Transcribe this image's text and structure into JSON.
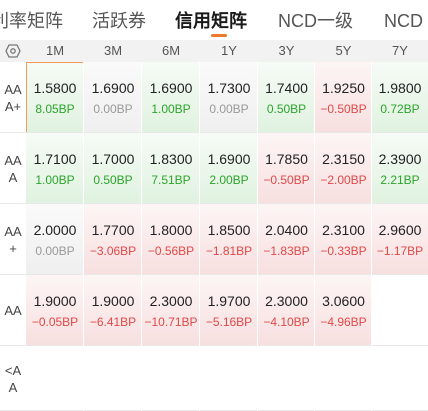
{
  "tabs": [
    "利率矩阵",
    "活跃券",
    "信用矩阵",
    "NCD一级",
    "NCD"
  ],
  "active_tab_index": 2,
  "columns": [
    "1M",
    "3M",
    "6M",
    "1Y",
    "3Y",
    "5Y",
    "7Y"
  ],
  "rows": [
    {
      "label": [
        "AA",
        "A+"
      ],
      "cells": [
        {
          "value": "1.5800",
          "delta": "8.05BP",
          "trend": "pos",
          "selected": true
        },
        {
          "value": "1.6900",
          "delta": "0.00BP",
          "trend": "zero"
        },
        {
          "value": "1.6900",
          "delta": "1.00BP",
          "trend": "pos"
        },
        {
          "value": "1.7300",
          "delta": "0.00BP",
          "trend": "zero"
        },
        {
          "value": "1.7400",
          "delta": "0.50BP",
          "trend": "pos"
        },
        {
          "value": "1.9250",
          "delta": "−0.50BP",
          "trend": "neg"
        },
        {
          "value": "1.9800",
          "delta": "0.72BP",
          "trend": "pos"
        }
      ]
    },
    {
      "label": [
        "AA",
        "A"
      ],
      "cells": [
        {
          "value": "1.7100",
          "delta": "1.00BP",
          "trend": "pos"
        },
        {
          "value": "1.7000",
          "delta": "0.50BP",
          "trend": "pos"
        },
        {
          "value": "1.8300",
          "delta": "7.51BP",
          "trend": "pos"
        },
        {
          "value": "1.6900",
          "delta": "2.00BP",
          "trend": "pos"
        },
        {
          "value": "1.7850",
          "delta": "−0.50BP",
          "trend": "neg"
        },
        {
          "value": "2.3150",
          "delta": "−2.00BP",
          "trend": "neg"
        },
        {
          "value": "2.3900",
          "delta": "2.21BP",
          "trend": "pos"
        }
      ]
    },
    {
      "label": [
        "AA",
        "+"
      ],
      "cells": [
        {
          "value": "2.0000",
          "delta": "0.00BP",
          "trend": "zero"
        },
        {
          "value": "1.7700",
          "delta": "−3.06BP",
          "trend": "neg"
        },
        {
          "value": "1.8000",
          "delta": "−0.56BP",
          "trend": "neg"
        },
        {
          "value": "1.8500",
          "delta": "−1.81BP",
          "trend": "neg"
        },
        {
          "value": "2.0400",
          "delta": "−1.83BP",
          "trend": "neg"
        },
        {
          "value": "2.3100",
          "delta": "−0.33BP",
          "trend": "neg"
        },
        {
          "value": "2.9600",
          "delta": "−1.17BP",
          "trend": "neg"
        }
      ]
    },
    {
      "label": [
        "AA"
      ],
      "cells": [
        {
          "value": "1.9000",
          "delta": "−0.05BP",
          "trend": "neg"
        },
        {
          "value": "1.9000",
          "delta": "−6.41BP",
          "trend": "neg"
        },
        {
          "value": "2.3000",
          "delta": "−10.71BP",
          "trend": "neg"
        },
        {
          "value": "1.9700",
          "delta": "−5.16BP",
          "trend": "neg"
        },
        {
          "value": "2.3000",
          "delta": "−4.10BP",
          "trend": "neg"
        },
        {
          "value": "3.0600",
          "delta": "−4.96BP",
          "trend": "neg"
        },
        {
          "value": "",
          "delta": "",
          "trend": "empty"
        }
      ]
    },
    {
      "label": [
        "<A",
        "A"
      ],
      "cells": [
        {
          "value": "",
          "delta": "",
          "trend": "empty"
        },
        {
          "value": "",
          "delta": "",
          "trend": "empty"
        },
        {
          "value": "",
          "delta": "",
          "trend": "empty"
        },
        {
          "value": "",
          "delta": "",
          "trend": "empty"
        },
        {
          "value": "",
          "delta": "",
          "trend": "empty"
        },
        {
          "value": "",
          "delta": "",
          "trend": "empty"
        },
        {
          "value": "",
          "delta": "",
          "trend": "empty"
        }
      ]
    }
  ],
  "colors": {
    "accent": "#f07a2a",
    "positive": "#2aa52a",
    "negative": "#e04848",
    "neutral": "#999999"
  },
  "icons": {
    "corner": "settings-hex-icon"
  }
}
